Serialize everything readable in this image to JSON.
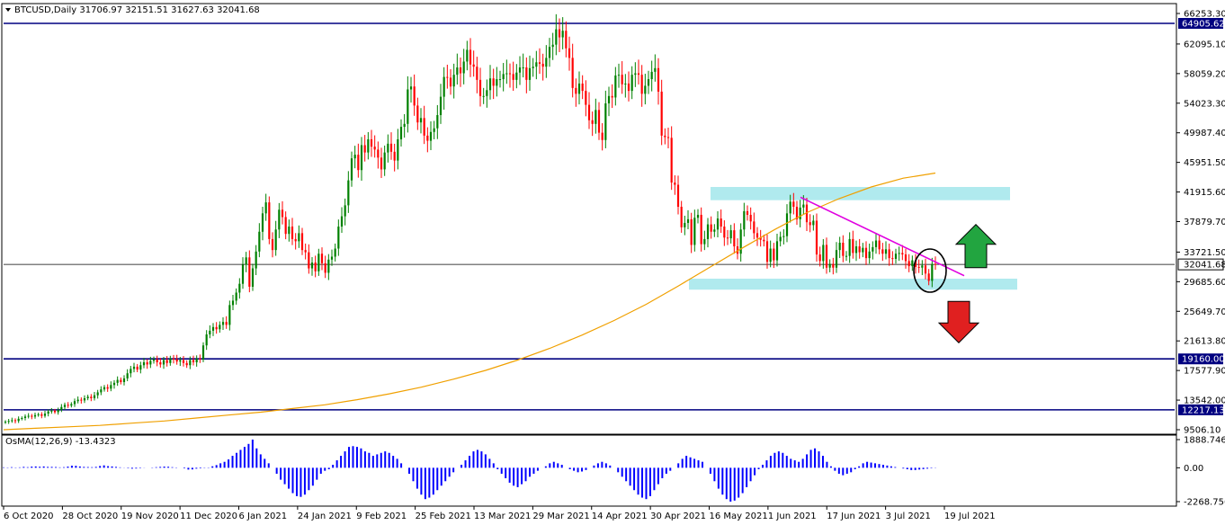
{
  "chart_data": {
    "type": "candlestick",
    "symbol": "BTCUSD",
    "timeframe": "Daily",
    "ohlc": [
      31706.97,
      32151.51,
      31627.63,
      32041.68
    ],
    "current_price": 32041.68,
    "price_axis": {
      "min": 9506.1,
      "max": 66253.3,
      "ticks": [
        66253.3,
        62095.1,
        58059.2,
        54023.3,
        49987.4,
        45951.5,
        41915.6,
        37879.7,
        33721.5,
        29685.6,
        25649.7,
        21613.8,
        17577.9,
        13542.0,
        9506.1
      ]
    },
    "x_axis_labels": [
      "6 Oct 2020",
      "28 Oct 2020",
      "19 Nov 2020",
      "11 Dec 2020",
      "6 Jan 2021",
      "24 Jan 2021",
      "9 Feb 2021",
      "25 Feb 2021",
      "13 Mar 2021",
      "29 Mar 2021",
      "14 Apr 2021",
      "30 Apr 2021",
      "16 May 2021",
      "1 Jun 2021",
      "17 Jun 2021",
      "3 Jul 2021",
      "19 Jul 2021"
    ],
    "horizontal_levels": [
      {
        "value": 64905.62,
        "label": "64905.62",
        "color": "#000080"
      },
      {
        "value": 19160.0,
        "label": "19160.00",
        "color": "#000080"
      },
      {
        "value": 12217.13,
        "label": "12217.13",
        "color": "#000080"
      }
    ],
    "candles_approx_close": [
      10600,
      10700,
      10800,
      10700,
      11000,
      11100,
      11300,
      11400,
      11300,
      11500,
      11600,
      11400,
      11700,
      12000,
      12100,
      11900,
      12200,
      12600,
      12900,
      12800,
      13000,
      13400,
      13600,
      13500,
      13800,
      14000,
      13800,
      14200,
      14600,
      15000,
      15300,
      15100,
      15600,
      15900,
      16300,
      16000,
      16500,
      17200,
      17800,
      18100,
      17700,
      18300,
      18700,
      18400,
      18900,
      19100,
      18700,
      18400,
      19000,
      18600,
      19200,
      19100,
      18800,
      19000,
      18600,
      18300,
      19000,
      18700,
      19200,
      19100,
      21000,
      22500,
      23000,
      23500,
      23200,
      23800,
      24200,
      23800,
      26500,
      27100,
      28200,
      29400,
      32000,
      33000,
      29000,
      31500,
      33800,
      36500,
      39000,
      40500,
      35500,
      34000,
      36800,
      39500,
      38500,
      36200,
      37200,
      35500,
      35200,
      36300,
      34000,
      33700,
      31500,
      32300,
      31100,
      33500,
      32200,
      30900,
      32700,
      33100,
      34200,
      37200,
      38600,
      40100,
      43500,
      46500,
      47000,
      44900,
      48300,
      47300,
      49100,
      48100,
      47700,
      46600,
      45000,
      47300,
      48500,
      47400,
      46200,
      49100,
      50800,
      51200,
      55900,
      56300,
      53700,
      51400,
      52000,
      49600,
      48900,
      50100,
      50600,
      52400,
      54900,
      57600,
      57500,
      56300,
      57900,
      58900,
      58100,
      59700,
      61300,
      59300,
      59000,
      57200,
      55000,
      55000,
      55800,
      57400,
      56400,
      57300,
      57300,
      58000,
      58100,
      58000,
      57200,
      58200,
      58900,
      58900,
      57200,
      58800,
      59000,
      59600,
      59400,
      59000,
      60200,
      61700,
      62000,
      64100,
      63000,
      63900,
      61500,
      60200,
      56100,
      55300,
      56700,
      55700,
      53800,
      51700,
      51200,
      53100,
      50000,
      49000,
      54000,
      55000,
      54800,
      57800,
      57900,
      56600,
      56700,
      55700,
      57900,
      58100,
      57900,
      55300,
      56400,
      57300,
      58300,
      58800,
      55600,
      49600,
      49400,
      49300,
      43200,
      42900,
      39900,
      37100,
      37700,
      38200,
      34700,
      38400,
      38800,
      34800,
      35500,
      37500,
      36500,
      36800,
      38300,
      37200,
      35700,
      35600,
      36700,
      34500,
      33500,
      36800,
      39300,
      38800,
      37900,
      36300,
      35700,
      35400,
      35200,
      32400,
      34200,
      32600,
      35200,
      35800,
      35900,
      39000,
      40600,
      39900,
      38200,
      39800,
      40200,
      37800,
      37400,
      38000,
      33400,
      32500,
      34700,
      31600,
      32100,
      31600,
      34000,
      35000,
      33200,
      33200,
      35500,
      33600,
      34500,
      33700,
      34300,
      32900,
      33800,
      34400,
      35300,
      34100,
      33500,
      34100,
      32900,
      32800,
      33500,
      33600,
      33400,
      32500,
      31800,
      32600,
      31700,
      31600,
      31900,
      30800,
      29800,
      32100,
      32041.68
    ],
    "sma_approx": [
      9506,
      9700,
      9900,
      10100,
      10400,
      10700,
      11100,
      11500,
      11900,
      12400,
      12900,
      13600,
      14400,
      15300,
      16400,
      17600,
      19000,
      20600,
      22400,
      24400,
      26600,
      29100,
      31700,
      34300,
      36800,
      39100,
      41000,
      42600,
      43800,
      44500
    ],
    "oscillator": {
      "name": "OsMA(12,26,9)",
      "value": -13.4323,
      "label": "OsMA(12,26,9) -13.4323",
      "axis_ticks": [
        1888.746,
        0.0,
        -2268.7568
      ],
      "axis_labels": [
        "1888.746",
        "0.00",
        "-2268.7568"
      ],
      "bars_approx": [
        30,
        20,
        40,
        20,
        30,
        60,
        40,
        80,
        90,
        70,
        90,
        60,
        60,
        50,
        30,
        40,
        80,
        140,
        130,
        90,
        60,
        50,
        40,
        60,
        120,
        160,
        110,
        90,
        60,
        30,
        10,
        -30,
        -60,
        -50,
        -30,
        -10,
        0,
        20,
        40,
        60,
        80,
        70,
        40,
        20,
        0,
        -40,
        -120,
        -110,
        -60,
        -40,
        -20,
        20,
        100,
        180,
        300,
        400,
        560,
        800,
        1000,
        1200,
        1400,
        1600,
        1888,
        1300,
        900,
        600,
        300,
        0,
        -400,
        -800,
        -1100,
        -1400,
        -1700,
        -1900,
        -1950,
        -1800,
        -1500,
        -1200,
        -800,
        -400,
        -200,
        -100,
        200,
        500,
        800,
        1100,
        1400,
        1450,
        1400,
        1300,
        1100,
        1000,
        800,
        900,
        1000,
        1100,
        1000,
        800,
        600,
        300,
        0,
        -400,
        -900,
        -1400,
        -1800,
        -2100,
        -2000,
        -1800,
        -1500,
        -1200,
        -900,
        -600,
        -300,
        0,
        200,
        500,
        800,
        1100,
        1200,
        1100,
        900,
        600,
        300,
        -100,
        -400,
        -700,
        -1000,
        -1200,
        -1300,
        -1100,
        -900,
        -600,
        -400,
        -200,
        0,
        100,
        300,
        400,
        300,
        200,
        0,
        -100,
        -200,
        -300,
        -250,
        -150,
        0,
        150,
        300,
        400,
        300,
        150,
        0,
        -300,
        -600,
        -900,
        -1200,
        -1500,
        -1800,
        -2000,
        -2100,
        -1900,
        -1500,
        -1100,
        -700,
        -400,
        -200,
        0,
        300,
        600,
        800,
        700,
        600,
        500,
        400,
        0,
        -400,
        -900,
        -1400,
        -1800,
        -2100,
        -2268,
        -2200,
        -2000,
        -1700,
        -1300,
        -900,
        -500,
        -100,
        200,
        500,
        800,
        1000,
        1100,
        1000,
        800,
        600,
        500,
        400,
        600,
        900,
        1200,
        1300,
        1100,
        800,
        400,
        100,
        -200,
        -400,
        -500,
        -400,
        -300,
        -100,
        100,
        300,
        400,
        350,
        300,
        250,
        200,
        150,
        100,
        50,
        0,
        -50,
        -100,
        -150,
        -150,
        -120,
        -90,
        -60,
        -30,
        -13.4323
      ]
    },
    "annotations": {
      "resistance_zone": {
        "low": 40800,
        "high": 42600
      },
      "support_zone": {
        "low": 28600,
        "high": 30100
      },
      "trendline": {
        "from": [
          41200,
          "start"
        ],
        "to": [
          30500,
          "end"
        ]
      }
    },
    "colors": {
      "bull": "#008000",
      "bear": "#ff0000",
      "sma": "#f0a000",
      "osma": "#0000ff",
      "level": "#000080",
      "zone": "#b0eaee",
      "trendline": "#e000e0",
      "arrow_up": "#22a540",
      "arrow_down": "#e02020"
    }
  }
}
